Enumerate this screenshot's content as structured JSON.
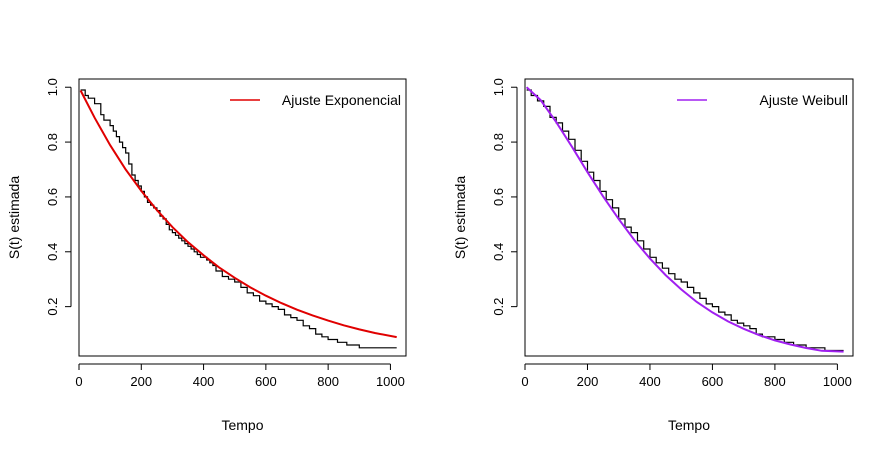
{
  "chart_data": [
    {
      "type": "line",
      "title": "",
      "xlabel": "Tempo",
      "ylabel": "S(t) estimada",
      "xlim": [
        0,
        1050
      ],
      "ylim": [
        0.02,
        1.03
      ],
      "xticks": [
        "0",
        "200",
        "400",
        "600",
        "800",
        "1000"
      ],
      "yticks": [
        "0.2",
        "0.4",
        "0.6",
        "0.8",
        "1.0"
      ],
      "legend": {
        "position": "top-right",
        "entries": [
          "Ajuste Exponencial"
        ]
      },
      "series": [
        {
          "name": "Kaplan-Meier",
          "style": "step",
          "color": "#000000",
          "x": [
            5,
            20,
            30,
            50,
            70,
            80,
            100,
            110,
            120,
            130,
            140,
            150,
            160,
            170,
            180,
            190,
            200,
            210,
            220,
            230,
            240,
            250,
            260,
            270,
            280,
            290,
            300,
            310,
            320,
            330,
            340,
            350,
            360,
            370,
            380,
            390,
            400,
            410,
            420,
            430,
            440,
            460,
            480,
            500,
            520,
            540,
            560,
            580,
            600,
            620,
            640,
            660,
            680,
            700,
            720,
            740,
            760,
            780,
            800,
            830,
            860,
            880,
            900,
            1020
          ],
          "y": [
            0.99,
            0.97,
            0.96,
            0.94,
            0.9,
            0.88,
            0.86,
            0.84,
            0.82,
            0.8,
            0.78,
            0.76,
            0.72,
            0.68,
            0.66,
            0.64,
            0.62,
            0.6,
            0.58,
            0.57,
            0.56,
            0.55,
            0.53,
            0.52,
            0.5,
            0.48,
            0.47,
            0.46,
            0.45,
            0.44,
            0.43,
            0.42,
            0.41,
            0.4,
            0.39,
            0.38,
            0.38,
            0.37,
            0.36,
            0.35,
            0.33,
            0.31,
            0.3,
            0.29,
            0.27,
            0.25,
            0.24,
            0.22,
            0.21,
            0.2,
            0.19,
            0.17,
            0.16,
            0.15,
            0.13,
            0.12,
            0.1,
            0.09,
            0.08,
            0.07,
            0.06,
            0.06,
            0.05,
            0.05
          ]
        },
        {
          "name": "Ajuste Exponencial",
          "style": "line",
          "color": "#e00000",
          "x": [
            5,
            50,
            100,
            150,
            200,
            250,
            300,
            350,
            400,
            450,
            500,
            550,
            600,
            650,
            700,
            750,
            800,
            850,
            900,
            950,
            1020
          ],
          "y": [
            0.988,
            0.889,
            0.789,
            0.7,
            0.622,
            0.552,
            0.49,
            0.435,
            0.387,
            0.343,
            0.305,
            0.27,
            0.24,
            0.213,
            0.189,
            0.168,
            0.149,
            0.132,
            0.117,
            0.104,
            0.089
          ]
        }
      ]
    },
    {
      "type": "line",
      "title": "",
      "xlabel": "Tempo",
      "ylabel": "S(t) estimada",
      "xlim": [
        0,
        1050
      ],
      "ylim": [
        0.02,
        1.03
      ],
      "xticks": [
        "0",
        "200",
        "400",
        "600",
        "800",
        "1000"
      ],
      "yticks": [
        "0.2",
        "0.4",
        "0.6",
        "0.8",
        "1.0"
      ],
      "legend": {
        "position": "top-right",
        "entries": [
          "Ajuste Weibull"
        ]
      },
      "series": [
        {
          "name": "Kaplan-Meier",
          "style": "step",
          "color": "#000000",
          "x": [
            5,
            20,
            40,
            60,
            80,
            100,
            120,
            140,
            160,
            180,
            200,
            220,
            240,
            260,
            280,
            300,
            320,
            340,
            360,
            380,
            400,
            420,
            440,
            460,
            480,
            500,
            520,
            540,
            560,
            580,
            600,
            620,
            640,
            660,
            680,
            700,
            720,
            740,
            760,
            780,
            800,
            830,
            860,
            900,
            960,
            1020
          ],
          "y": [
            0.99,
            0.97,
            0.95,
            0.93,
            0.89,
            0.87,
            0.84,
            0.81,
            0.77,
            0.73,
            0.69,
            0.66,
            0.62,
            0.59,
            0.56,
            0.52,
            0.49,
            0.47,
            0.44,
            0.41,
            0.38,
            0.36,
            0.34,
            0.32,
            0.3,
            0.29,
            0.27,
            0.25,
            0.23,
            0.21,
            0.2,
            0.18,
            0.17,
            0.15,
            0.14,
            0.13,
            0.12,
            0.1,
            0.09,
            0.09,
            0.08,
            0.07,
            0.06,
            0.05,
            0.04,
            0.04
          ]
        },
        {
          "name": "Ajuste Weibull",
          "style": "line",
          "color": "#a020f0",
          "x": [
            5,
            50,
            100,
            150,
            200,
            250,
            300,
            350,
            400,
            450,
            500,
            550,
            600,
            650,
            700,
            750,
            800,
            850,
            900,
            950,
            1020
          ],
          "y": [
            1.0,
            0.953,
            0.873,
            0.783,
            0.69,
            0.602,
            0.519,
            0.443,
            0.375,
            0.315,
            0.263,
            0.217,
            0.179,
            0.146,
            0.119,
            0.096,
            0.077,
            0.062,
            0.049,
            0.039,
            0.036
          ]
        }
      ]
    }
  ]
}
